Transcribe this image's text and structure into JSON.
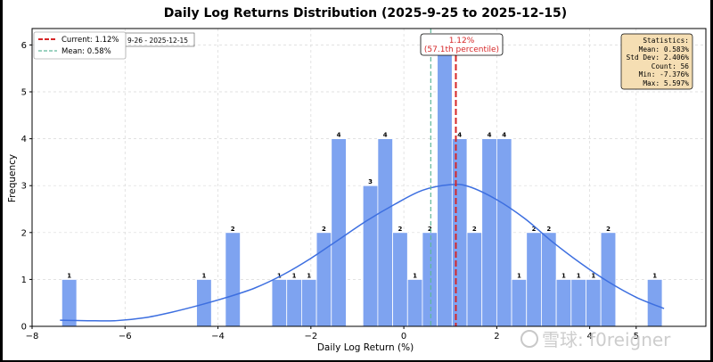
{
  "chart_data": {
    "type": "bar",
    "title": "Daily Log Returns Distribution (2025-9-25 to 2025-12-15)",
    "xlabel": "Daily Log Return (%)",
    "ylabel": "Frequency",
    "xlim": [
      -8,
      6.5
    ],
    "ylim": [
      0,
      6.35
    ],
    "xticks": [
      -8,
      -6,
      -4,
      -2,
      0,
      2,
      4,
      5
    ],
    "yticks": [
      0,
      1,
      2,
      3,
      4,
      5,
      6
    ],
    "grid": true,
    "bins": [
      {
        "x": -7.2,
        "count": 1
      },
      {
        "x": -4.3,
        "count": 1
      },
      {
        "x": -3.68,
        "count": 2
      },
      {
        "x": -2.68,
        "count": 1
      },
      {
        "x": -2.36,
        "count": 1
      },
      {
        "x": -2.04,
        "count": 1
      },
      {
        "x": -1.72,
        "count": 2
      },
      {
        "x": -1.4,
        "count": 4
      },
      {
        "x": -0.72,
        "count": 3
      },
      {
        "x": -0.4,
        "count": 4
      },
      {
        "x": -0.08,
        "count": 2
      },
      {
        "x": 0.24,
        "count": 1
      },
      {
        "x": 0.56,
        "count": 2
      },
      {
        "x": 0.88,
        "count": 6
      },
      {
        "x": 1.2,
        "count": 4
      },
      {
        "x": 1.52,
        "count": 2
      },
      {
        "x": 1.84,
        "count": 4
      },
      {
        "x": 2.16,
        "count": 4
      },
      {
        "x": 2.48,
        "count": 1
      },
      {
        "x": 2.8,
        "count": 2
      },
      {
        "x": 3.12,
        "count": 2
      },
      {
        "x": 3.44,
        "count": 1
      },
      {
        "x": 3.76,
        "count": 1
      },
      {
        "x": 4.08,
        "count": 1
      },
      {
        "x": 4.4,
        "count": 2
      },
      {
        "x": 5.4,
        "count": 1
      }
    ],
    "bin_width": 0.32,
    "kde": [
      [
        -7.4,
        0.13
      ],
      [
        -6.8,
        0.12
      ],
      [
        -6.2,
        0.12
      ],
      [
        -5.6,
        0.18
      ],
      [
        -5.0,
        0.3
      ],
      [
        -4.4,
        0.45
      ],
      [
        -3.8,
        0.62
      ],
      [
        -3.2,
        0.82
      ],
      [
        -2.6,
        1.1
      ],
      [
        -2.0,
        1.45
      ],
      [
        -1.4,
        1.85
      ],
      [
        -0.8,
        2.25
      ],
      [
        -0.2,
        2.6
      ],
      [
        0.4,
        2.9
      ],
      [
        1.0,
        3.02
      ],
      [
        1.4,
        2.98
      ],
      [
        2.0,
        2.7
      ],
      [
        2.6,
        2.3
      ],
      [
        3.2,
        1.8
      ],
      [
        3.8,
        1.35
      ],
      [
        4.4,
        0.95
      ],
      [
        5.0,
        0.62
      ],
      [
        5.6,
        0.38
      ]
    ],
    "current": {
      "value": 1.12,
      "label": "1.12%",
      "percentile_text": "(57.1th percentile)"
    },
    "mean_line": {
      "value": 0.58
    },
    "legend": {
      "current": "Current: 1.12%",
      "mean": "Mean: 0.58%",
      "hidden_partial": "9-26 - 2025-12-15"
    },
    "stats": {
      "header": "Statistics:",
      "lines": [
        "Mean: 0.583%",
        "Std Dev: 2.406%",
        "Count: 56",
        "Min: -7.376%",
        "Max: 5.597%"
      ]
    },
    "colors": {
      "bar": "#7ea3f0",
      "kde": "#3d6fe0",
      "current": "#d62728",
      "mean": "#5fb89a",
      "stats_bg": "#f5deb3"
    }
  },
  "watermark": "雪球: f0reigner"
}
